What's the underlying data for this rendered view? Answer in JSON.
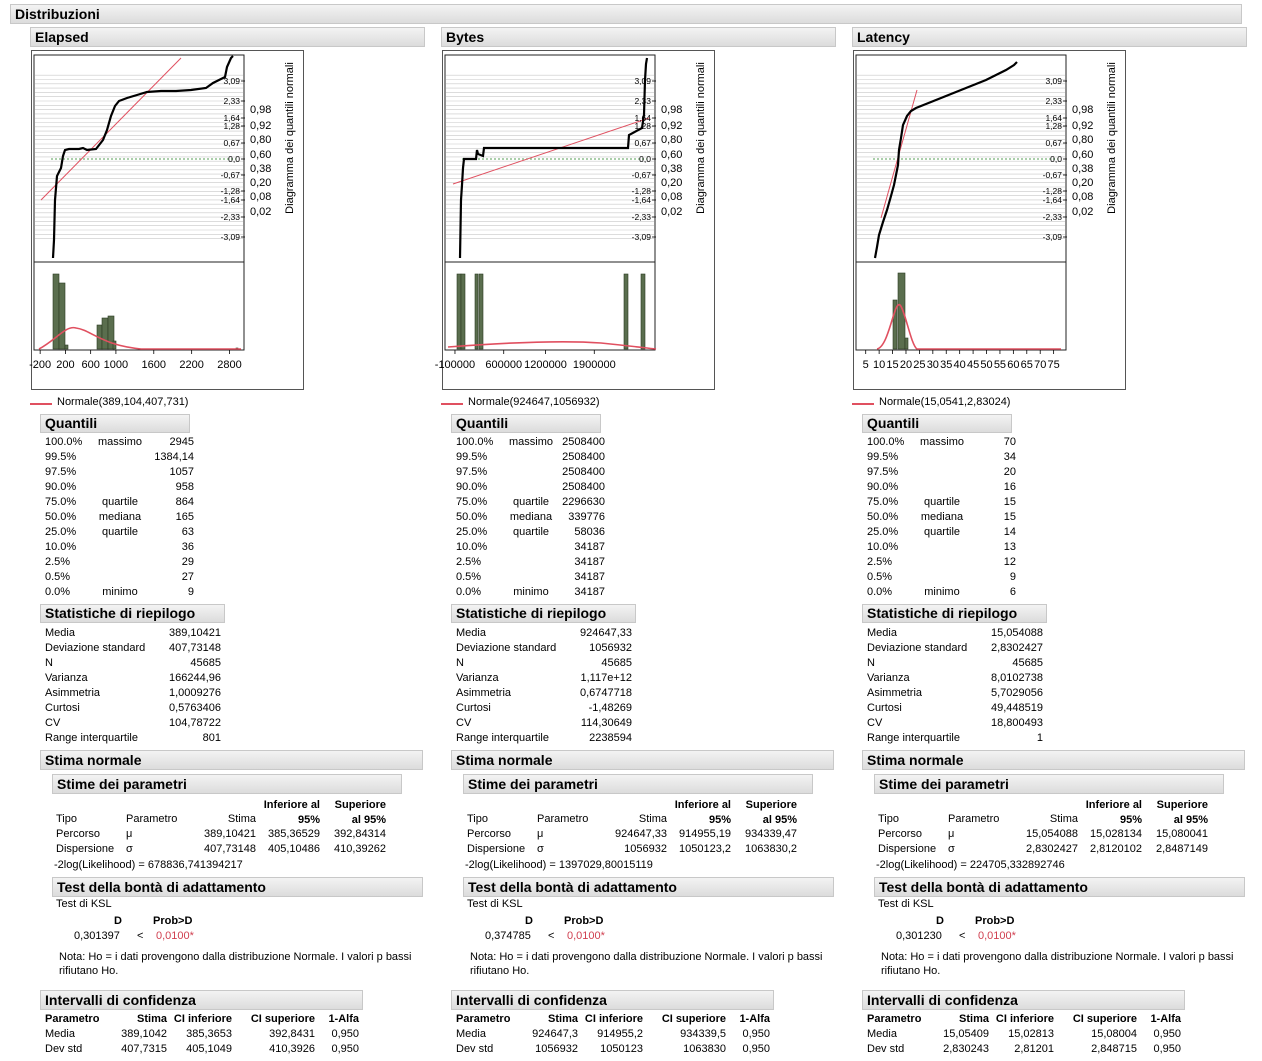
{
  "title": "Distribuzioni",
  "columns": [
    {
      "name": "Elapsed",
      "normal_label": "Normale(389,104,407,731)",
      "xticks": [
        "-200",
        "200",
        "600",
        "1000",
        "1600",
        "2200",
        "2800"
      ],
      "quantili_title": "Quantili",
      "quantili": [
        [
          "100.0%",
          "massimo",
          "2945"
        ],
        [
          "99.5%",
          "",
          "1384,14"
        ],
        [
          "97.5%",
          "",
          "1057"
        ],
        [
          "90.0%",
          "",
          "958"
        ],
        [
          "75.0%",
          "quartile",
          "864"
        ],
        [
          "50.0%",
          "mediana",
          "165"
        ],
        [
          "25.0%",
          "quartile",
          "63"
        ],
        [
          "10.0%",
          "",
          "36"
        ],
        [
          "2.5%",
          "",
          "29"
        ],
        [
          "0.5%",
          "",
          "27"
        ],
        [
          "0.0%",
          "minimo",
          "9"
        ]
      ],
      "riepilogo_title": "Statistiche di riepilogo",
      "riepilogo": [
        [
          "Media",
          "389,10421"
        ],
        [
          "Deviazione standard",
          "407,73148"
        ],
        [
          "N",
          "45685"
        ],
        [
          "Varianza",
          "166244,96"
        ],
        [
          "Asimmetria",
          "1,0009276"
        ],
        [
          "Curtosi",
          "0,5763406"
        ],
        [
          "CV",
          "104,78722"
        ],
        [
          "Range interquartile",
          "801"
        ]
      ],
      "stima_title": "Stima normale",
      "param_title": "Stime dei parametri",
      "param_rows": [
        [
          "Percorso",
          "μ",
          "389,10421",
          "385,36529",
          "392,84314"
        ],
        [
          "Dispersione",
          "σ",
          "407,73148",
          "405,10486",
          "410,39262"
        ]
      ],
      "loglik": "-2log(Likelihood) = 678836,741394217",
      "gof_title": "Test della bontà di adattamento",
      "ks_label": "Test di KSL",
      "D": "0,301397",
      "prob": "0,0100*",
      "note": "Nota: Ho = i dati provengono dalla distribuzione Normale. I valori p bassi rifiutano Ho.",
      "ci_title": "Intervalli di confidenza",
      "ci_rows": [
        [
          "Media",
          "389,1042",
          "385,3653",
          "392,8431",
          "0,950"
        ],
        [
          "Dev std",
          "407,7315",
          "405,1049",
          "410,3926",
          "0,950"
        ]
      ]
    },
    {
      "name": "Bytes",
      "normal_label": "Normale(924647,1056932)",
      "xticks": [
        "-100000",
        "600000",
        "1200000",
        "1900000"
      ],
      "quantili_title": "Quantili",
      "quantili": [
        [
          "100.0%",
          "massimo",
          "2508400"
        ],
        [
          "99.5%",
          "",
          "2508400"
        ],
        [
          "97.5%",
          "",
          "2508400"
        ],
        [
          "90.0%",
          "",
          "2508400"
        ],
        [
          "75.0%",
          "quartile",
          "2296630"
        ],
        [
          "50.0%",
          "mediana",
          "339776"
        ],
        [
          "25.0%",
          "quartile",
          "58036"
        ],
        [
          "10.0%",
          "",
          "34187"
        ],
        [
          "2.5%",
          "",
          "34187"
        ],
        [
          "0.5%",
          "",
          "34187"
        ],
        [
          "0.0%",
          "minimo",
          "34187"
        ]
      ],
      "riepilogo_title": "Statistiche di riepilogo",
      "riepilogo": [
        [
          "Media",
          "924647,33"
        ],
        [
          "Deviazione standard",
          "1056932"
        ],
        [
          "N",
          "45685"
        ],
        [
          "Varianza",
          "1,117e+12"
        ],
        [
          "Asimmetria",
          "0,6747718"
        ],
        [
          "Curtosi",
          "-1,48269"
        ],
        [
          "CV",
          "114,30649"
        ],
        [
          "Range interquartile",
          "2238594"
        ]
      ],
      "stima_title": "Stima normale",
      "param_title": "Stime dei parametri",
      "param_rows": [
        [
          "Percorso",
          "μ",
          "924647,33",
          "914955,19",
          "934339,47"
        ],
        [
          "Dispersione",
          "σ",
          "1056932",
          "1050123,2",
          "1063830,2"
        ]
      ],
      "loglik": "-2log(Likelihood) = 1397029,80015119",
      "gof_title": "Test della bontà di adattamento",
      "ks_label": "Test di KSL",
      "D": "0,374785",
      "prob": "0,0100*",
      "note": "Nota: Ho = i dati provengono dalla distribuzione Normale. I valori p bassi rifiutano Ho.",
      "ci_title": "Intervalli di confidenza",
      "ci_rows": [
        [
          "Media",
          "924647,3",
          "914955,2",
          "934339,5",
          "0,950"
        ],
        [
          "Dev std",
          "1056932",
          "1050123",
          "1063830",
          "0,950"
        ]
      ]
    },
    {
      "name": "Latency",
      "normal_label": "Normale(15,0541,2,83024)",
      "xticks": [
        "5",
        "10",
        "15",
        "20",
        "25",
        "30",
        "35",
        "40",
        "45",
        "50",
        "55",
        "60",
        "65",
        "70",
        "75"
      ],
      "quantili_title": "Quantili",
      "quantili": [
        [
          "100.0%",
          "massimo",
          "70"
        ],
        [
          "99.5%",
          "",
          "34"
        ],
        [
          "97.5%",
          "",
          "20"
        ],
        [
          "90.0%",
          "",
          "16"
        ],
        [
          "75.0%",
          "quartile",
          "15"
        ],
        [
          "50.0%",
          "mediana",
          "15"
        ],
        [
          "25.0%",
          "quartile",
          "14"
        ],
        [
          "10.0%",
          "",
          "13"
        ],
        [
          "2.5%",
          "",
          "12"
        ],
        [
          "0.5%",
          "",
          "9"
        ],
        [
          "0.0%",
          "minimo",
          "6"
        ]
      ],
      "riepilogo_title": "Statistiche di riepilogo",
      "riepilogo": [
        [
          "Media",
          "15,054088"
        ],
        [
          "Deviazione standard",
          "2,8302427"
        ],
        [
          "N",
          "45685"
        ],
        [
          "Varianza",
          "8,0102738"
        ],
        [
          "Asimmetria",
          "5,7029056"
        ],
        [
          "Curtosi",
          "49,448519"
        ],
        [
          "CV",
          "18,800493"
        ],
        [
          "Range interquartile",
          "1"
        ]
      ],
      "stima_title": "Stima normale",
      "param_title": "Stime dei parametri",
      "param_rows": [
        [
          "Percorso",
          "μ",
          "15,054088",
          "15,028134",
          "15,080041"
        ],
        [
          "Dispersione",
          "σ",
          "2,8302427",
          "2,8120102",
          "2,8487149"
        ]
      ],
      "loglik": "-2log(Likelihood) = 224705,332892746",
      "gof_title": "Test della bontà di adattamento",
      "ks_label": "Test di KSL",
      "D": "0,301230",
      "prob": "0,0100*",
      "note": "Nota: Ho = i dati provengono dalla distribuzione Normale. I valori p bassi rifiutano Ho.",
      "ci_title": "Intervalli di confidenza",
      "ci_rows": [
        [
          "Media",
          "15,05409",
          "15,02813",
          "15,08004",
          "0,950"
        ],
        [
          "Dev std",
          "2,830243",
          "2,81201",
          "2,848715",
          "0,950"
        ]
      ]
    }
  ],
  "labels": {
    "qq_axis": "Diagramma dei quantili normali",
    "qq_left": [
      "3,09",
      "2,33",
      "1,64",
      "1,28",
      "0,67",
      "0,0",
      "-0,67",
      "-1,28",
      "-1,64",
      "-2,33",
      "-3,09"
    ],
    "qq_right": [
      "0,98",
      "0,92",
      "0,80",
      "0,60",
      "0,38",
      "0,20",
      "0,08",
      "0,02"
    ],
    "param_headers": [
      "Tipo",
      "Parametro",
      "Stima",
      "Inferiore al 95%",
      "Superiore al 95%"
    ],
    "gof_headers": [
      "D",
      "Prob>D"
    ],
    "lt": "<",
    "ci_headers": [
      "Parametro",
      "Stima",
      "CI inferiore",
      "CI superiore",
      "1-Alfa"
    ]
  },
  "colors": {
    "bar": "#5a6e4e",
    "normal": "#e05060",
    "header_bg": "#e6e6e6",
    "pvalue": "#d04050"
  }
}
